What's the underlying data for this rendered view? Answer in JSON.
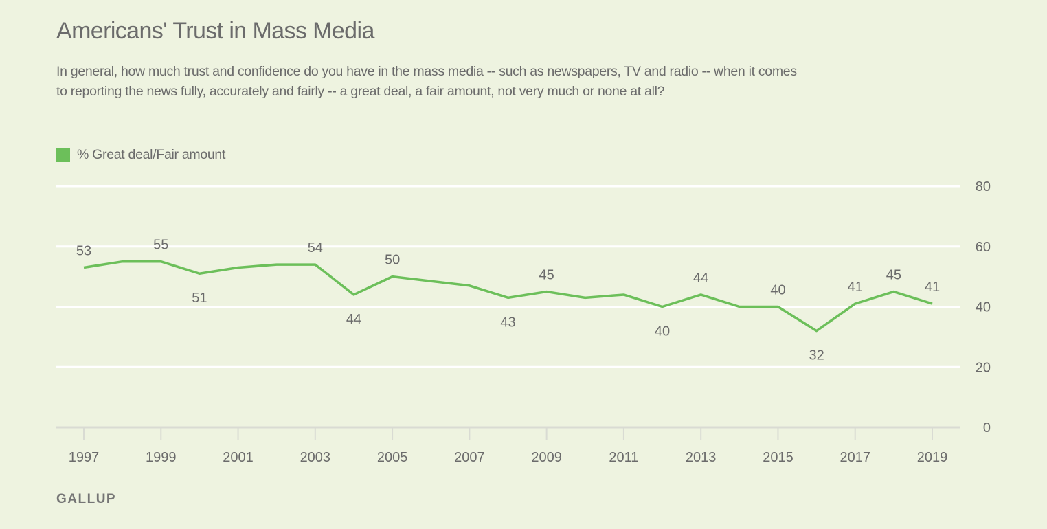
{
  "header": {
    "title": "Americans' Trust in Mass Media",
    "subtitle": "In general, how much trust and confidence do you have in the mass media -- such as newspapers, TV and radio -- when it comes to reporting the news fully, accurately and fairly -- a great deal, a fair amount, not very much or none at all?"
  },
  "legend": {
    "label": "% Great deal/Fair amount",
    "color": "#6cbf5a"
  },
  "footer": {
    "source": "GALLUP"
  },
  "chart_data": {
    "type": "line",
    "title": "Americans' Trust in Mass Media",
    "xlabel": "",
    "ylabel": "",
    "x": [
      1997,
      1998,
      1999,
      2000,
      2001,
      2002,
      2003,
      2004,
      2005,
      2006,
      2007,
      2008,
      2009,
      2010,
      2011,
      2012,
      2013,
      2014,
      2015,
      2016,
      2017,
      2018,
      2019
    ],
    "series": [
      {
        "name": "% Great deal/Fair amount",
        "color": "#6cbf5a",
        "values": [
          53,
          55,
          55,
          51,
          53,
          54,
          54,
          44,
          50,
          null,
          47,
          43,
          45,
          43,
          44,
          40,
          44,
          40,
          40,
          32,
          41,
          45,
          41
        ]
      }
    ],
    "data_labels": [
      {
        "x": 1997,
        "value": "53",
        "position": "above"
      },
      {
        "x": 1999,
        "value": "55",
        "position": "above"
      },
      {
        "x": 2000,
        "value": "51",
        "position": "below"
      },
      {
        "x": 2003,
        "value": "54",
        "position": "above"
      },
      {
        "x": 2004,
        "value": "44",
        "position": "below"
      },
      {
        "x": 2005,
        "value": "50",
        "position": "above"
      },
      {
        "x": 2008,
        "value": "43",
        "position": "below"
      },
      {
        "x": 2009,
        "value": "45",
        "position": "above"
      },
      {
        "x": 2012,
        "value": "40",
        "position": "below"
      },
      {
        "x": 2013,
        "value": "44",
        "position": "above"
      },
      {
        "x": 2015,
        "value": "40",
        "position": "above"
      },
      {
        "x": 2016,
        "value": "32",
        "position": "below"
      },
      {
        "x": 2017,
        "value": "41",
        "position": "above"
      },
      {
        "x": 2018,
        "value": "45",
        "position": "above"
      },
      {
        "x": 2019,
        "value": "41",
        "position": "above"
      }
    ],
    "x_ticks": [
      1997,
      1999,
      2001,
      2003,
      2005,
      2007,
      2009,
      2011,
      2013,
      2015,
      2017,
      2019
    ],
    "y_ticks": [
      0,
      20,
      40,
      60,
      80
    ],
    "xlim": [
      1997,
      2019
    ],
    "ylim": [
      0,
      80
    ],
    "grid": true,
    "y_axis_side": "right",
    "legend_position": "top-left"
  }
}
